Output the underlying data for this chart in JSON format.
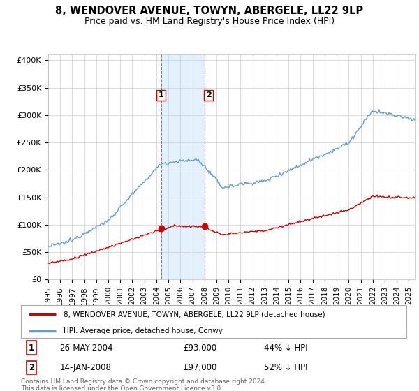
{
  "title": "8, WENDOVER AVENUE, TOWYN, ABERGELE, LL22 9LP",
  "subtitle": "Price paid vs. HM Land Registry's House Price Index (HPI)",
  "ylim": [
    0,
    410000
  ],
  "xlim_start": 1995.0,
  "xlim_end": 2025.5,
  "purchase1_x": 2004.4,
  "purchase1_y": 93000,
  "purchase2_x": 2008.04,
  "purchase2_y": 97000,
  "shaded_region_start": 2004.4,
  "shaded_region_end": 2008.04,
  "line1_color": "#cc0000",
  "line2_color": "#6699cc",
  "background_color": "#ffffff",
  "grid_color": "#cccccc",
  "legend1_label": "8, WENDOVER AVENUE, TOWYN, ABERGELE, LL22 9LP (detached house)",
  "legend2_label": "HPI: Average price, detached house, Conwy",
  "purchase1_date": "26-MAY-2004",
  "purchase1_price": "£93,000",
  "purchase1_hpi": "44% ↓ HPI",
  "purchase2_date": "14-JAN-2008",
  "purchase2_price": "£97,000",
  "purchase2_hpi": "52% ↓ HPI",
  "footer": "Contains HM Land Registry data © Crown copyright and database right 2024.\nThis data is licensed under the Open Government Licence v3.0.",
  "xtick_years": [
    1995,
    1996,
    1997,
    1998,
    1999,
    2000,
    2001,
    2002,
    2003,
    2004,
    2005,
    2006,
    2007,
    2008,
    2009,
    2010,
    2011,
    2012,
    2013,
    2014,
    2015,
    2016,
    2017,
    2018,
    2019,
    2020,
    2021,
    2022,
    2023,
    2024,
    2025
  ],
  "ytick_vals": [
    0,
    50000,
    100000,
    150000,
    200000,
    250000,
    300000,
    350000,
    400000
  ],
  "ytick_labels": [
    "£0",
    "£50K",
    "£100K",
    "£150K",
    "£200K",
    "£250K",
    "£300K",
    "£350K",
    "£400K"
  ]
}
